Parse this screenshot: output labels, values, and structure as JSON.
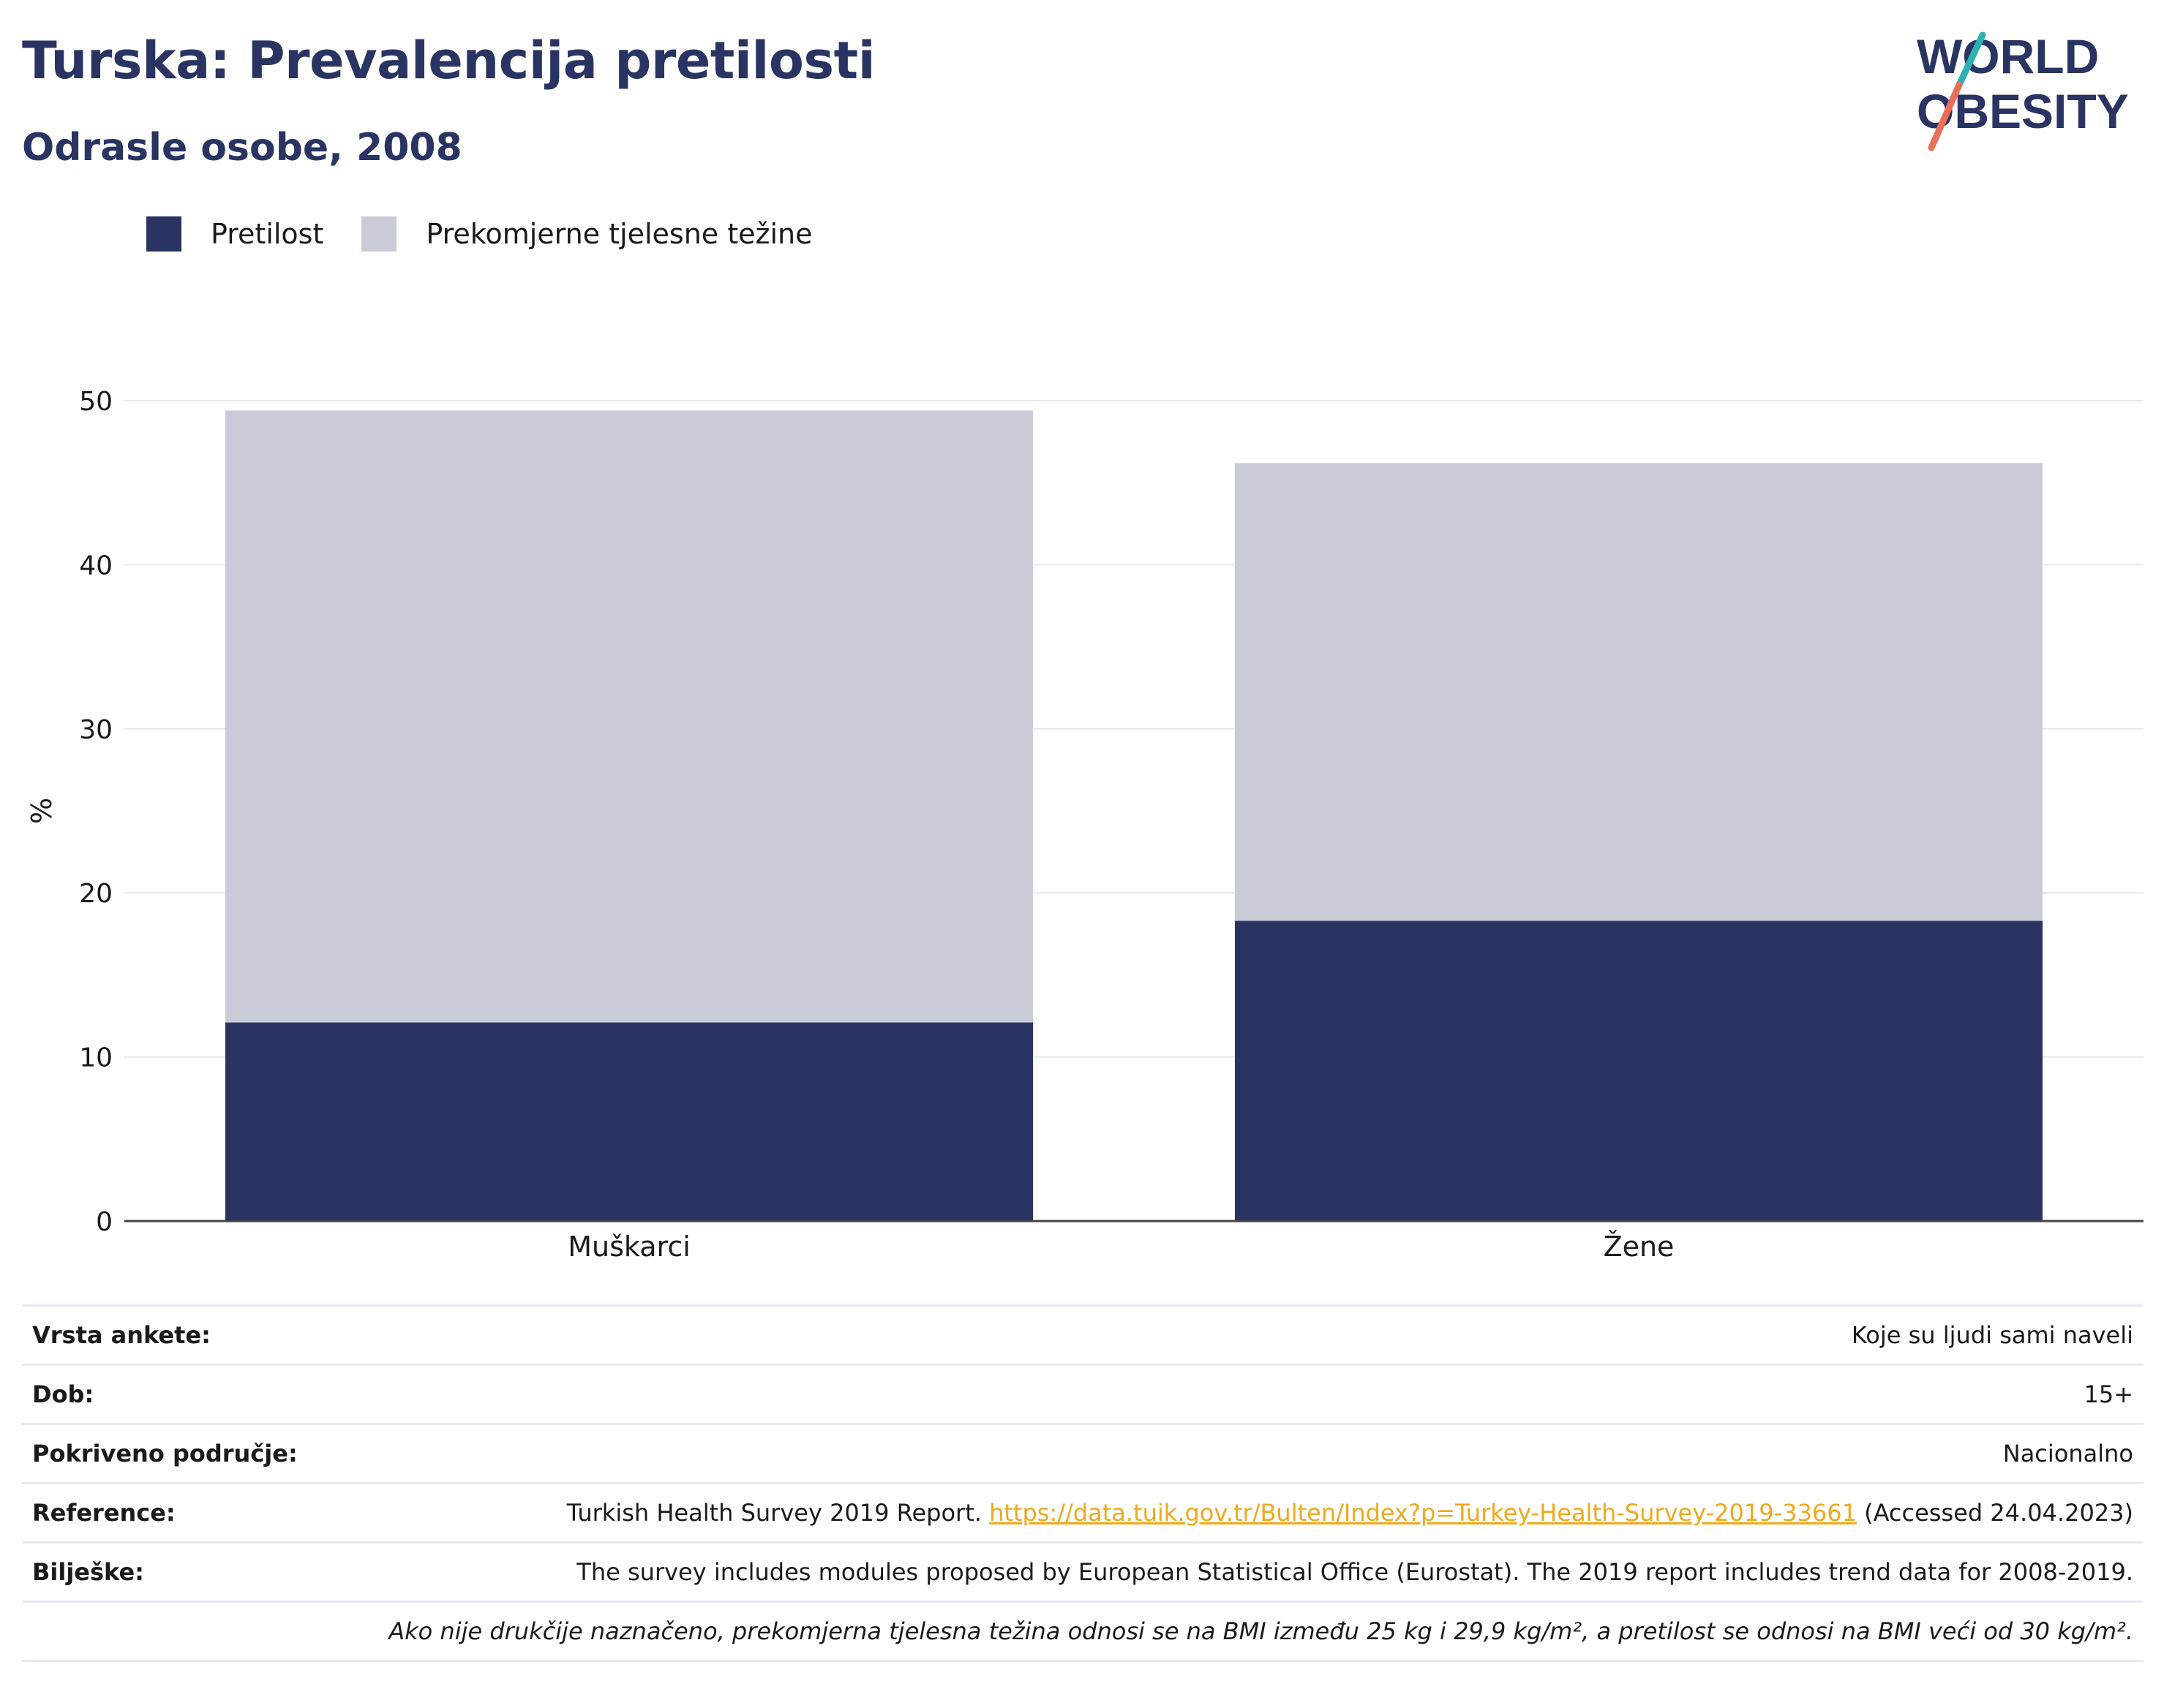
{
  "header": {
    "title": "Turska: Prevalencija pretilosti",
    "subtitle": "Odrasle osobe, 2008"
  },
  "logo": {
    "line1": "WORLD",
    "line2": "OBESITY",
    "colors": {
      "text": "#293462",
      "slash_top": "#2bb3b1",
      "slash_bottom": "#e8705a"
    }
  },
  "legend": [
    {
      "label": "Pretilost",
      "color": "#293462"
    },
    {
      "label": "Prekomjerne tjelesne težine",
      "color": "#c9ccd8"
    }
  ],
  "chart_data": {
    "type": "bar",
    "stacked": true,
    "categories": [
      "Muškarci",
      "Žene"
    ],
    "series": [
      {
        "name": "Pretilost",
        "color": "#293462",
        "values": [
          12.1,
          18.3
        ]
      },
      {
        "name": "Prekomjerne tjelesne težine",
        "color": "#c9ccd8",
        "values": [
          37.3,
          27.9
        ]
      }
    ],
    "ylabel": "%",
    "ylim": [
      0,
      50
    ],
    "yticks": [
      0,
      10,
      20,
      30,
      40,
      50
    ],
    "grid": true,
    "legend_position": "top-left"
  },
  "info": {
    "survey_type": {
      "label": "Vrsta ankete:",
      "value": "Koje su ljudi sami naveli"
    },
    "age": {
      "label": "Dob:",
      "value": "15+"
    },
    "coverage": {
      "label": "Pokriveno područje:",
      "value": "Nacionalno"
    },
    "reference": {
      "label": "Reference:",
      "prefix": "Turkish Health Survey 2019 Report.",
      "link": "https://data.tuik.gov.tr/Bulten/Index?p=Turkey-Health-Survey-2019-33661",
      "suffix": "(Accessed 24.04.2023)"
    },
    "notes": {
      "label": "Bilješke:",
      "value": "The survey includes modules proposed by European Statistical Office (Eurostat). The 2019 report includes trend data for 2008-2019."
    },
    "footnote": "Ako nije drukčije naznačeno, prekomjerna tjelesna težina odnosi se na BMI između 25 kg i 29,9 kg/m², a pretilost se odnosi na BMI veći od 30 kg/m²."
  }
}
